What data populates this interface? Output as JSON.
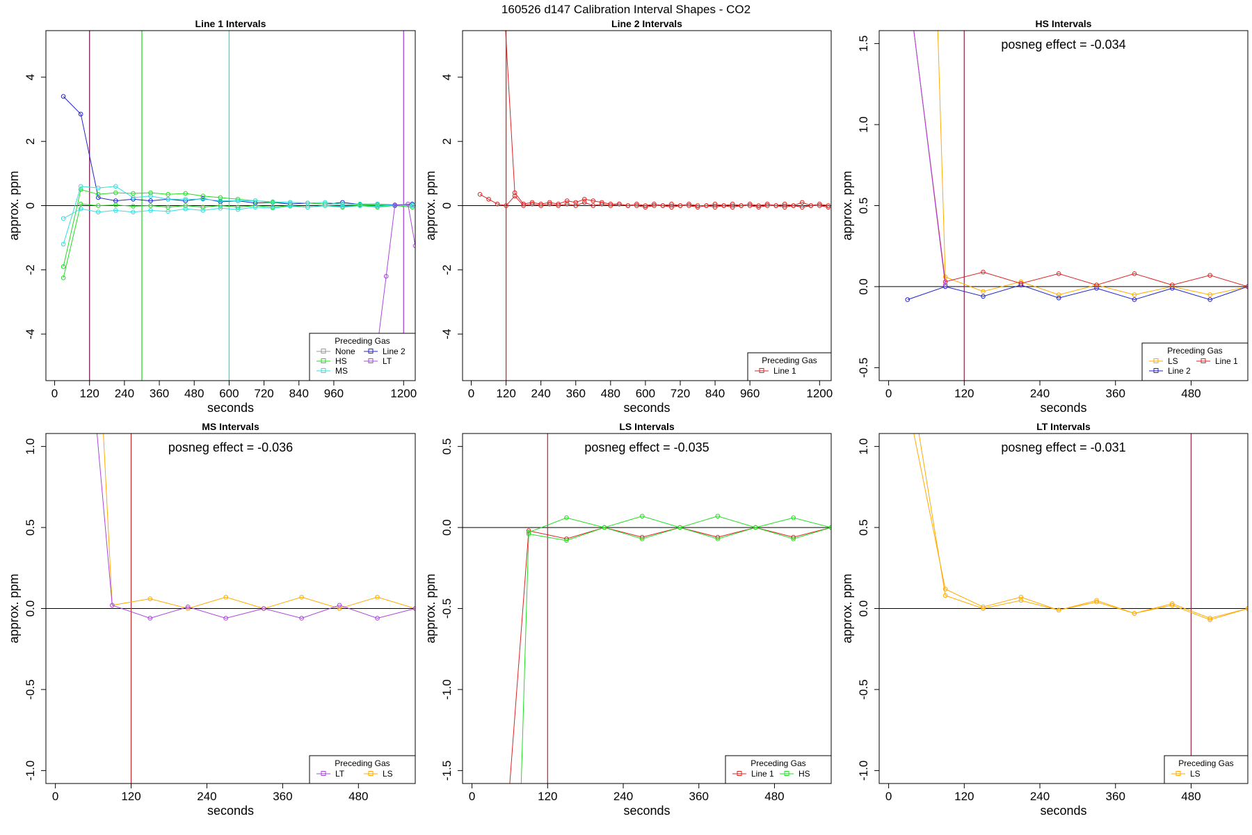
{
  "figure": {
    "title": "160526  d147   Calibration Interval Shapes - CO2",
    "legend_title": "Preceding Gas",
    "colors": {
      "None": "#999999",
      "HS": "#22dd22",
      "MS": "#33dddd",
      "Line 2": "#2222cc",
      "LT": "#aa44dd",
      "Line 1": "#dd2222",
      "LS": "#ffaa00",
      "grey_line": "#555555",
      "vline_dark": "#9b2d55"
    }
  },
  "chart_data": [
    {
      "title": "Line 1 Intervals",
      "type": "line",
      "xlabel": "seconds",
      "ylabel": "approx. ppm",
      "xlim": [
        -30,
        1240
      ],
      "ylim": [
        -5.45,
        5.45
      ],
      "xticks": [
        0,
        120,
        240,
        360,
        480,
        600,
        720,
        840,
        960,
        1200
      ],
      "yticks": [
        -4,
        -2,
        0,
        2,
        4
      ],
      "hline": 0,
      "vlines": [
        {
          "x": 120,
          "color": "#7a1f50"
        },
        {
          "x": 300,
          "color": "#22dd22"
        },
        {
          "x": 600,
          "color": "#33dddd"
        },
        {
          "x": 1200,
          "color": "#aa44dd"
        }
      ],
      "annotation": "",
      "legend_position": "bottom-right",
      "legend_columns": 2,
      "legend": [
        "None",
        "HS",
        "MS",
        "Line 2",
        "LT"
      ],
      "series": [
        {
          "name": "Line 2",
          "x": [
            30,
            90,
            150,
            210,
            270,
            330,
            390,
            450,
            510,
            570,
            630,
            690,
            750,
            810,
            870,
            930,
            990,
            1050,
            1110,
            1170,
            1230
          ],
          "y": [
            3.4,
            2.85,
            0.25,
            0.15,
            0.2,
            0.15,
            0.2,
            0.15,
            0.22,
            0.12,
            0.15,
            0.08,
            0.1,
            0.05,
            0.08,
            0.05,
            0.1,
            0.04,
            0.05,
            0.02,
            0.05
          ]
        },
        {
          "name": "HS",
          "x": [
            30,
            90,
            150,
            210,
            270,
            330,
            390,
            450,
            510,
            570,
            630,
            690,
            750,
            810,
            870,
            930,
            990,
            1050,
            1110,
            1170,
            1230
          ],
          "y": [
            -1.9,
            0.5,
            0.35,
            0.4,
            0.38,
            0.4,
            0.35,
            0.38,
            0.3,
            0.25,
            0.2,
            0.15,
            0.1,
            0.1,
            0.08,
            0.05,
            0.05,
            0.02,
            0.02,
            0.0,
            0.0
          ]
        },
        {
          "name": "HS",
          "x": [
            30,
            90,
            150,
            210,
            270,
            330,
            390,
            450,
            510,
            570,
            630,
            690,
            750,
            810,
            870,
            930,
            990,
            1050,
            1110,
            1170,
            1230
          ],
          "y": [
            -2.25,
            0.05,
            0.0,
            0.02,
            -0.02,
            0.0,
            -0.05,
            0.0,
            -0.05,
            0.0,
            -0.05,
            0.0,
            -0.05,
            0.0,
            -0.05,
            0.0,
            -0.05,
            0.0,
            -0.05,
            0.0,
            -0.05
          ]
        },
        {
          "name": "MS",
          "x": [
            30,
            90,
            150,
            210,
            270,
            330,
            390,
            450,
            510,
            570,
            630,
            690,
            750,
            810,
            870,
            930,
            990,
            1050,
            1110,
            1170,
            1230
          ],
          "y": [
            -1.2,
            0.6,
            0.55,
            0.6,
            0.25,
            0.3,
            0.2,
            0.2,
            0.2,
            0.15,
            0.15,
            0.15,
            0.12,
            0.1,
            0.08,
            0.1,
            0.05,
            0.05,
            0.05,
            0.0,
            0.02
          ]
        },
        {
          "name": "MS",
          "x": [
            30,
            90,
            150,
            210,
            270,
            330,
            390,
            450,
            510,
            570,
            630,
            690,
            750,
            810,
            870,
            930,
            990,
            1050,
            1110,
            1170,
            1230
          ],
          "y": [
            -0.4,
            -0.1,
            -0.2,
            -0.15,
            -0.2,
            -0.15,
            -0.18,
            -0.1,
            -0.15,
            -0.08,
            -0.12,
            -0.05,
            -0.08,
            -0.02,
            -0.05,
            0.0,
            -0.03,
            0.0,
            -0.02,
            0.0,
            0.0
          ]
        },
        {
          "name": "LT",
          "x": [
            1095,
            1140,
            1170,
            1215,
            1240
          ],
          "y": [
            -5.45,
            -2.2,
            0.0,
            0.05,
            -1.25
          ]
        }
      ]
    },
    {
      "title": "Line 2 Intervals",
      "type": "line",
      "xlabel": "seconds",
      "ylabel": "approx. ppm",
      "xlim": [
        -30,
        1240
      ],
      "ylim": [
        -5.45,
        5.45
      ],
      "xticks": [
        0,
        120,
        240,
        360,
        480,
        600,
        720,
        840,
        960,
        1200
      ],
      "yticks": [
        -4,
        -2,
        0,
        2,
        4
      ],
      "hline": 0,
      "vlines": [
        {
          "x": 120,
          "color": "#dd2222"
        }
      ],
      "annotation": "",
      "legend_position": "bottom-right",
      "legend_columns": 1,
      "legend": [
        "Line 1"
      ],
      "series": [
        {
          "name": "Line 1",
          "x": [
            118,
            150,
            180,
            210,
            240,
            270,
            300,
            330,
            360,
            390,
            420,
            450,
            480,
            510,
            540,
            570,
            600,
            630,
            660,
            690,
            720,
            750,
            780,
            810,
            840,
            870,
            900,
            930,
            960,
            990,
            1020,
            1050,
            1080,
            1110,
            1140,
            1170,
            1200,
            1230
          ],
          "y": [
            5.45,
            0.4,
            0.05,
            0.1,
            0.05,
            0.1,
            0.05,
            0.15,
            0.1,
            0.2,
            0.15,
            0.1,
            0.05,
            0.05,
            0.0,
            0.05,
            0.0,
            0.05,
            0.0,
            0.05,
            0.0,
            0.05,
            0.0,
            0.0,
            0.05,
            0.0,
            0.05,
            0.0,
            0.05,
            0.0,
            0.05,
            0.0,
            0.05,
            0.0,
            0.1,
            0.0,
            0.05,
            0.0
          ]
        },
        {
          "name": "Line 1",
          "x": [
            30,
            60,
            90,
            120,
            150,
            180,
            210,
            240,
            270,
            300,
            330,
            360,
            390,
            420,
            450,
            480,
            510,
            540,
            570,
            600,
            630,
            660,
            690,
            720,
            750,
            780,
            810,
            840,
            870,
            900,
            930,
            960,
            990,
            1020,
            1050,
            1080,
            1110,
            1140,
            1170,
            1200,
            1230
          ],
          "y": [
            0.35,
            0.2,
            0.05,
            0.0,
            0.3,
            0.0,
            0.05,
            0.0,
            0.05,
            0.0,
            0.05,
            0.0,
            0.1,
            0.0,
            0.05,
            0.0,
            0.05,
            0.0,
            0.0,
            -0.05,
            0.0,
            0.0,
            -0.05,
            0.0,
            0.0,
            -0.05,
            0.0,
            -0.05,
            0.0,
            -0.05,
            0.0,
            0.0,
            -0.05,
            0.0,
            0.0,
            -0.05,
            0.0,
            -0.05,
            0.0,
            0.0,
            -0.05
          ]
        }
      ]
    },
    {
      "title": "HS Intervals",
      "type": "line",
      "xlabel": "seconds",
      "ylabel": "approx. ppm",
      "xlim": [
        -15,
        570
      ],
      "ylim": [
        -0.58,
        1.58
      ],
      "xticks": [
        0,
        120,
        240,
        360,
        480
      ],
      "yticks": [
        -0.5,
        0.0,
        0.5,
        1.0,
        1.5
      ],
      "hline": 0,
      "vlines": [
        {
          "x": 120,
          "color": "#9b2d55"
        }
      ],
      "annotation": "posneg effect = -0.034",
      "legend_position": "bottom-right",
      "legend_columns": 2,
      "legend": [
        "LS",
        "Line 2",
        "Line 1"
      ],
      "series": [
        {
          "name": "LS",
          "x": [
            78,
            90,
            150,
            210,
            270,
            330,
            390,
            450,
            510,
            570
          ],
          "y": [
            1.58,
            0.06,
            -0.03,
            0.03,
            -0.05,
            0.01,
            -0.05,
            0.0,
            -0.05,
            0.0
          ]
        },
        {
          "name": "Line 2",
          "x": [
            30,
            90,
            150,
            210,
            270,
            330,
            390,
            450,
            510,
            570
          ],
          "y": [
            -0.08,
            0.0,
            -0.06,
            0.01,
            -0.07,
            -0.01,
            -0.08,
            -0.01,
            -0.08,
            0.0
          ]
        },
        {
          "name": "Line 1",
          "x": [
            40,
            90,
            150,
            210,
            270,
            330,
            390,
            450,
            510,
            570
          ],
          "y": [
            1.58,
            0.03,
            0.09,
            0.02,
            0.08,
            0.01,
            0.08,
            0.01,
            0.07,
            0.0
          ]
        },
        {
          "name": "LT",
          "x": [
            40,
            90
          ],
          "y": [
            1.58,
            0.01
          ]
        }
      ]
    },
    {
      "title": "MS Intervals",
      "type": "line",
      "xlabel": "seconds",
      "ylabel": "approx. ppm",
      "xlim": [
        -15,
        570
      ],
      "ylim": [
        -1.08,
        1.08
      ],
      "xticks": [
        0,
        120,
        240,
        360,
        480
      ],
      "yticks": [
        -1.0,
        -0.5,
        0.0,
        0.5,
        1.0
      ],
      "hline": 0,
      "vlines": [
        {
          "x": 120,
          "color": "#bb3333"
        }
      ],
      "annotation": "posneg effect = -0.036",
      "legend_position": "bottom-right",
      "legend_columns": 2,
      "legend": [
        "LT",
        "LS"
      ],
      "series": [
        {
          "name": "LS",
          "x": [
            76,
            90,
            150,
            210,
            270,
            330,
            390,
            450,
            510,
            570
          ],
          "y": [
            1.08,
            0.02,
            0.06,
            0.0,
            0.07,
            0.0,
            0.07,
            0.0,
            0.07,
            0.0
          ]
        },
        {
          "name": "LT",
          "x": [
            66,
            90,
            150,
            210,
            270,
            330,
            390,
            450,
            510,
            570
          ],
          "y": [
            1.08,
            0.02,
            -0.06,
            0.01,
            -0.06,
            0.0,
            -0.06,
            0.02,
            -0.06,
            0.0
          ]
        }
      ]
    },
    {
      "title": "LS Intervals",
      "type": "line",
      "xlabel": "seconds",
      "ylabel": "approx. ppm",
      "xlim": [
        -15,
        570
      ],
      "ylim": [
        -1.58,
        0.58
      ],
      "xticks": [
        0,
        120,
        240,
        360,
        480
      ],
      "yticks": [
        -1.5,
        -1.0,
        -0.5,
        0.0,
        0.5
      ],
      "hline": 0,
      "vlines": [
        {
          "x": 120,
          "color": "#bb3333"
        }
      ],
      "annotation": "posneg effect = -0.035",
      "legend_position": "bottom-right",
      "legend_columns": 2,
      "legend": [
        "Line 1",
        "HS"
      ],
      "series": [
        {
          "name": "Line 1",
          "x": [
            60,
            90,
            150,
            210,
            270,
            330,
            390,
            450,
            510,
            570
          ],
          "y": [
            -1.58,
            -0.02,
            -0.07,
            0.0,
            -0.06,
            0.0,
            -0.06,
            0.0,
            -0.06,
            0.0
          ]
        },
        {
          "name": "HS",
          "x": [
            78,
            90,
            150,
            210,
            270,
            330,
            390,
            450,
            510,
            570
          ],
          "y": [
            -1.58,
            -0.04,
            -0.08,
            0.0,
            -0.07,
            0.0,
            -0.07,
            0.0,
            -0.07,
            0.0
          ]
        },
        {
          "name": "HS",
          "x": [
            90,
            150,
            210,
            270,
            330,
            390,
            450,
            510,
            570
          ],
          "y": [
            -0.03,
            0.06,
            0.0,
            0.07,
            0.0,
            0.07,
            0.0,
            0.06,
            0.0
          ]
        }
      ]
    },
    {
      "title": "LT Intervals",
      "type": "line",
      "xlabel": "seconds",
      "ylabel": "approx. ppm",
      "xlim": [
        -15,
        570
      ],
      "ylim": [
        -1.08,
        1.08
      ],
      "xticks": [
        0,
        120,
        240,
        360,
        480
      ],
      "yticks": [
        -1.0,
        -0.5,
        0.0,
        0.5,
        1.0
      ],
      "hline": 0,
      "vlines": [
        {
          "x": 480,
          "color": "#9b2d55"
        }
      ],
      "annotation": "posneg effect = -0.031",
      "legend_position": "bottom-right",
      "legend_columns": 1,
      "legend": [
        "LS"
      ],
      "series": [
        {
          "name": "LS",
          "x": [
            40,
            90,
            150,
            210,
            270,
            330,
            390,
            450,
            510,
            570
          ],
          "y": [
            1.08,
            0.12,
            0.01,
            0.07,
            -0.01,
            0.05,
            -0.03,
            0.03,
            -0.06,
            0.0
          ]
        },
        {
          "name": "LS",
          "x": [
            48,
            90,
            150,
            210,
            270,
            330,
            390,
            450,
            510,
            570
          ],
          "y": [
            1.08,
            0.08,
            0.0,
            0.05,
            -0.01,
            0.04,
            -0.03,
            0.02,
            -0.07,
            0.0
          ]
        }
      ]
    }
  ]
}
